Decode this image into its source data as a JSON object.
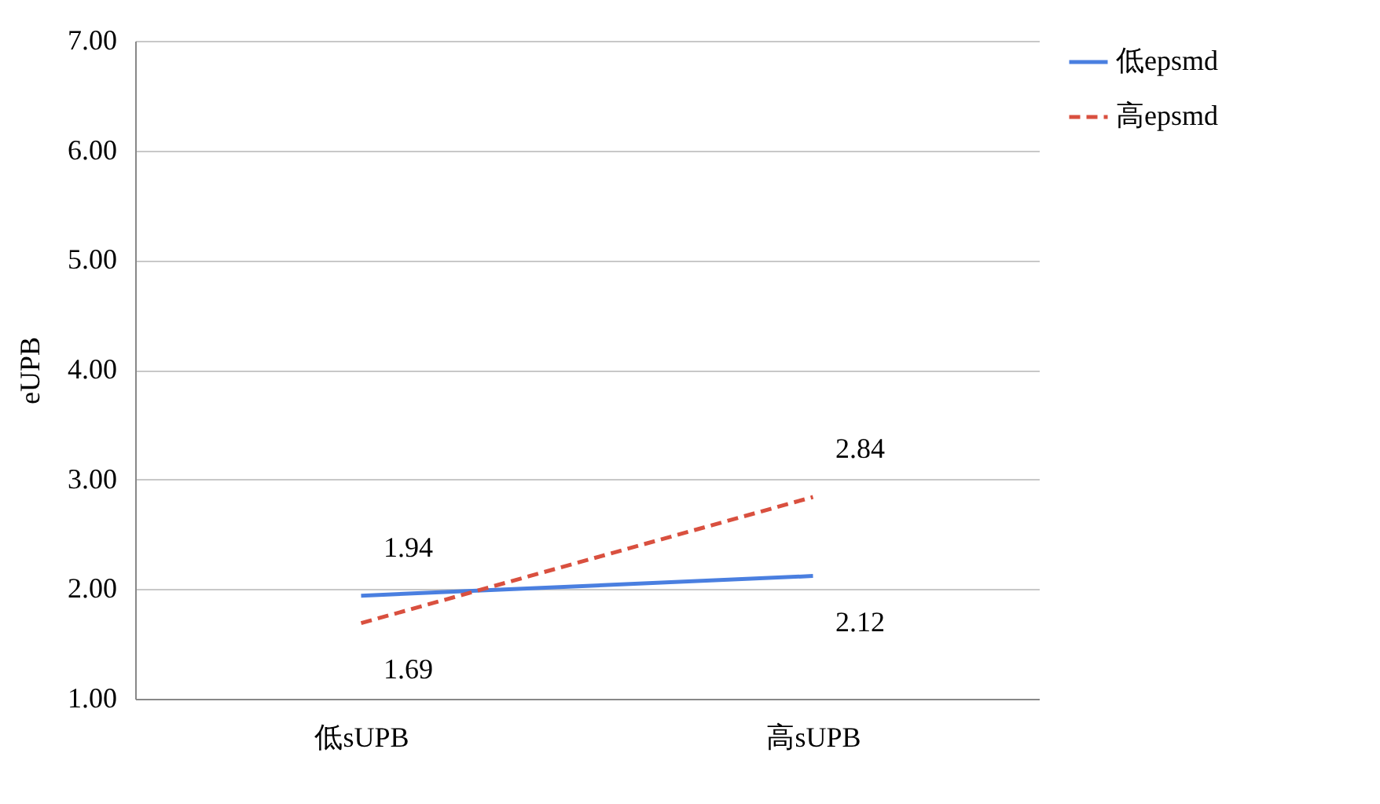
{
  "chart_data": {
    "type": "line",
    "ylabel": "eUPB",
    "categories": [
      "低sUPB",
      "高sUPB"
    ],
    "series": [
      {
        "name": "低epsmd",
        "color": "#4a7fe0",
        "line_style": "solid",
        "values": [
          1.94,
          2.12
        ]
      },
      {
        "name": "高epsmd",
        "color": "#d9503f",
        "line_style": "dashed",
        "values": [
          1.69,
          2.84
        ]
      }
    ],
    "ylim": [
      1,
      7
    ],
    "yticks": [
      {
        "value": 1,
        "label": "1.00"
      },
      {
        "value": 2,
        "label": "2.00"
      },
      {
        "value": 3,
        "label": "3.00"
      },
      {
        "value": 4,
        "label": "4.00"
      },
      {
        "value": 5,
        "label": "5.00"
      },
      {
        "value": 6,
        "label": "6.00"
      },
      {
        "value": 7,
        "label": "7.00"
      }
    ],
    "grid": "y",
    "legend": "right",
    "data_labels": true,
    "marker": "none"
  }
}
